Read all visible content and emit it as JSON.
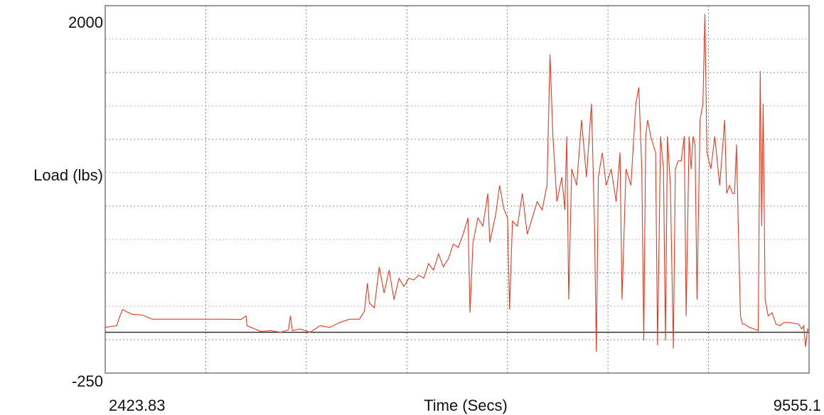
{
  "chart_data": {
    "type": "line",
    "title": "",
    "xlabel": "Time (Secs)",
    "ylabel": "Load (lbs)",
    "xlim": [
      2423.83,
      9555.1
    ],
    "ylim": [
      -250,
      2000
    ],
    "x_tick_labels": [
      "2423.83",
      "9555.1"
    ],
    "y_tick_labels": [
      "2000",
      "-250"
    ],
    "grid": true,
    "legend": "none",
    "colors": {
      "series": "#e53a20",
      "grid_major": "#666666",
      "grid_minor": "#d88a8a",
      "border": "#7a7a7a",
      "zero_line": "#222222"
    },
    "series": [
      {
        "values": [
          [
            2423.83,
            30
          ],
          [
            2540,
            40
          ],
          [
            2570,
            95
          ],
          [
            2600,
            140
          ],
          [
            2640,
            125
          ],
          [
            2700,
            110
          ],
          [
            2800,
            105
          ],
          [
            2900,
            80
          ],
          [
            3100,
            80
          ],
          [
            3300,
            80
          ],
          [
            3600,
            80
          ],
          [
            3800,
            78
          ],
          [
            3850,
            100
          ],
          [
            3860,
            40
          ],
          [
            4000,
            5
          ],
          [
            4100,
            10
          ],
          [
            4200,
            0
          ],
          [
            4280,
            15
          ],
          [
            4300,
            100
          ],
          [
            4320,
            10
          ],
          [
            4400,
            20
          ],
          [
            4500,
            0
          ],
          [
            4600,
            40
          ],
          [
            4700,
            30
          ],
          [
            4800,
            60
          ],
          [
            4900,
            80
          ],
          [
            5000,
            80
          ],
          [
            5050,
            130
          ],
          [
            5080,
            300
          ],
          [
            5100,
            180
          ],
          [
            5150,
            150
          ],
          [
            5200,
            400
          ],
          [
            5250,
            240
          ],
          [
            5300,
            380
          ],
          [
            5350,
            200
          ],
          [
            5400,
            330
          ],
          [
            5450,
            280
          ],
          [
            5500,
            330
          ],
          [
            5550,
            320
          ],
          [
            5600,
            350
          ],
          [
            5650,
            330
          ],
          [
            5700,
            420
          ],
          [
            5750,
            380
          ],
          [
            5800,
            480
          ],
          [
            5850,
            400
          ],
          [
            5900,
            450
          ],
          [
            5950,
            540
          ],
          [
            6000,
            520
          ],
          [
            6050,
            600
          ],
          [
            6100,
            700
          ],
          [
            6120,
            120
          ],
          [
            6150,
            550
          ],
          [
            6200,
            700
          ],
          [
            6250,
            650
          ],
          [
            6300,
            850
          ],
          [
            6320,
            550
          ],
          [
            6380,
            720
          ],
          [
            6420,
            900
          ],
          [
            6460,
            760
          ],
          [
            6500,
            700
          ],
          [
            6520,
            140
          ],
          [
            6550,
            680
          ],
          [
            6600,
            650
          ],
          [
            6650,
            850
          ],
          [
            6700,
            600
          ],
          [
            6750,
            700
          ],
          [
            6800,
            800
          ],
          [
            6850,
            750
          ],
          [
            6900,
            900
          ],
          [
            6930,
            1700
          ],
          [
            6960,
            1200
          ],
          [
            7000,
            800
          ],
          [
            7050,
            950
          ],
          [
            7080,
            750
          ],
          [
            7100,
            1200
          ],
          [
            7120,
            200
          ],
          [
            7150,
            1000
          ],
          [
            7200,
            900
          ],
          [
            7250,
            1300
          ],
          [
            7300,
            950
          ],
          [
            7350,
            1400
          ],
          [
            7380,
            700
          ],
          [
            7400,
            -120
          ],
          [
            7420,
            950
          ],
          [
            7460,
            1100
          ],
          [
            7500,
            900
          ],
          [
            7550,
            1000
          ],
          [
            7600,
            800
          ],
          [
            7640,
            1100
          ],
          [
            7660,
            200
          ],
          [
            7700,
            1000
          ],
          [
            7750,
            900
          ],
          [
            7800,
            1400
          ],
          [
            7830,
            1500
          ],
          [
            7860,
            1000
          ],
          [
            7880,
            -50
          ],
          [
            7900,
            1200
          ],
          [
            7920,
            1300
          ],
          [
            7950,
            1200
          ],
          [
            8000,
            1100
          ],
          [
            8020,
            -80
          ],
          [
            8050,
            1200
          ],
          [
            8080,
            1000
          ],
          [
            8100,
            -50
          ],
          [
            8120,
            1200
          ],
          [
            8150,
            900
          ],
          [
            8180,
            -100
          ],
          [
            8200,
            1000
          ],
          [
            8230,
            1050
          ],
          [
            8260,
            1050
          ],
          [
            8290,
            1200
          ],
          [
            8310,
            100
          ],
          [
            8340,
            1200
          ],
          [
            8360,
            1000
          ],
          [
            8380,
            1200
          ],
          [
            8400,
            1150
          ],
          [
            8420,
            200
          ],
          [
            8450,
            1300
          ],
          [
            8480,
            1400
          ],
          [
            8500,
            1950
          ],
          [
            8520,
            1100
          ],
          [
            8560,
            1000
          ],
          [
            8600,
            1200
          ],
          [
            8650,
            900
          ],
          [
            8700,
            1300
          ],
          [
            8720,
            850
          ],
          [
            8750,
            900
          ],
          [
            8780,
            850
          ],
          [
            8800,
            850
          ],
          [
            8820,
            1150
          ],
          [
            8840,
            600
          ],
          [
            8860,
            100
          ],
          [
            8880,
            50
          ],
          [
            8900,
            50
          ],
          [
            8950,
            30
          ],
          [
            9000,
            20
          ],
          [
            9040,
            10
          ],
          [
            9060,
            1600
          ],
          [
            9075,
            650
          ],
          [
            9090,
            1400
          ],
          [
            9110,
            200
          ],
          [
            9140,
            100
          ],
          [
            9180,
            120
          ],
          [
            9220,
            50
          ],
          [
            9260,
            40
          ],
          [
            9300,
            60
          ],
          [
            9350,
            60
          ],
          [
            9400,
            55
          ],
          [
            9450,
            50
          ],
          [
            9480,
            20
          ],
          [
            9500,
            40
          ],
          [
            9520,
            -90
          ],
          [
            9540,
            20
          ],
          [
            9555.1,
            10
          ]
        ]
      }
    ]
  }
}
